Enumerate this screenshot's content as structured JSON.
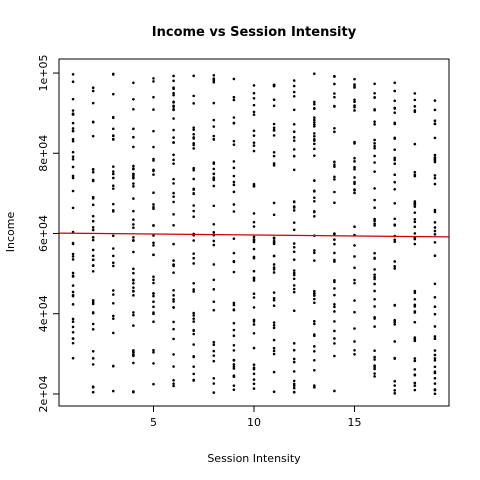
{
  "chart_data": {
    "type": "scatter",
    "title": "Income vs Session Intensity",
    "xlabel": "Session Intensity",
    "ylabel": "Income",
    "xlim": [
      0.3,
      19.7
    ],
    "ylim": [
      17000,
      103500
    ],
    "xticks": [
      5,
      10,
      15
    ],
    "xtick_labels": [
      "5",
      "10",
      "15"
    ],
    "yticks": [
      20000,
      40000,
      60000,
      80000,
      100000
    ],
    "ytick_labels": [
      "2e+04",
      "4e+04",
      "6e+04",
      "8e+04",
      "1e+05"
    ],
    "grid": false,
    "legend": "none",
    "point_color": "#000000",
    "trend_color": "#cc0000",
    "trend_line": {
      "x": [
        0.3,
        19.7
      ],
      "y": [
        60100,
        59150
      ]
    },
    "x_categories": [
      1,
      2,
      3,
      4,
      5,
      6,
      7,
      8,
      9,
      10,
      11,
      12,
      13,
      14,
      15,
      16,
      17,
      18,
      19
    ],
    "income_range": [
      20000,
      100000
    ],
    "note_points": "Each integer session intensity has a vertical column of many income observations spanning roughly 20000 to 100000."
  }
}
